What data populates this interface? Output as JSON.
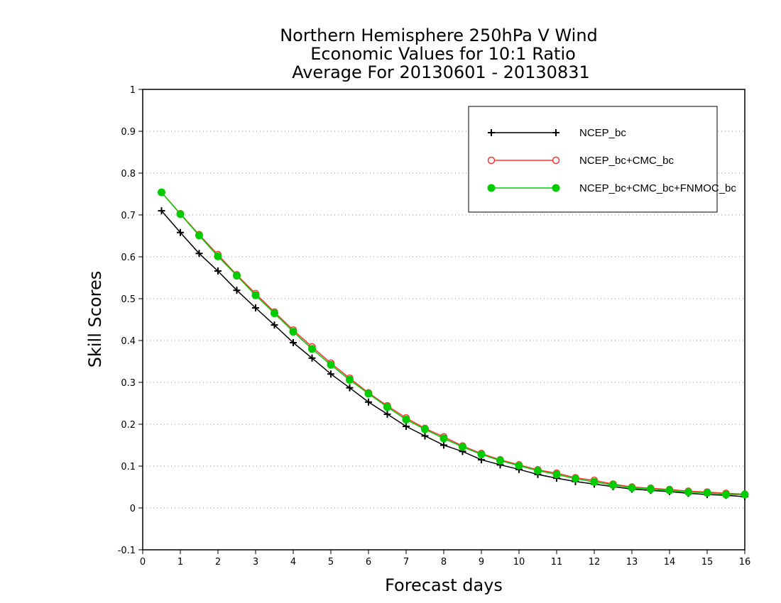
{
  "chart_data": {
    "type": "line",
    "title": [
      "Northern Hemisphere 250hPa V Wind",
      "Economic Values for 10:1 Ratio",
      "Average For 20130601 - 20130831"
    ],
    "xlabel": "Forecast days",
    "ylabel": "Skill Scores",
    "xlim": [
      0,
      16
    ],
    "ylim": [
      -0.1,
      1
    ],
    "x_ticks": [
      "0",
      "1",
      "2",
      "3",
      "4",
      "5",
      "6",
      "7",
      "8",
      "9",
      "10",
      "11",
      "12",
      "13",
      "14",
      "15",
      "16"
    ],
    "y_ticks": [
      "-0.1",
      "0",
      "0.1",
      "0.2",
      "0.3",
      "0.4",
      "0.5",
      "0.6",
      "0.7",
      "0.8",
      "0.9",
      "1"
    ],
    "grid": "horizontal dotted",
    "legend_position": "top-right",
    "x": [
      0.5,
      1,
      1.5,
      2,
      2.5,
      3,
      3.5,
      4,
      4.5,
      5,
      5.5,
      6,
      6.5,
      7,
      7.5,
      8,
      8.5,
      9,
      9.5,
      10,
      10.5,
      11,
      11.5,
      12,
      12.5,
      13,
      13.5,
      14,
      14.5,
      15,
      15.5,
      16
    ],
    "series": [
      {
        "name": "NCEP_bc",
        "color": "#000000",
        "marker": "plus",
        "values": [
          0.71,
          0.658,
          0.608,
          0.566,
          0.52,
          0.478,
          0.437,
          0.395,
          0.358,
          0.32,
          0.287,
          0.253,
          0.224,
          0.195,
          0.172,
          0.15,
          0.135,
          0.115,
          0.103,
          0.092,
          0.08,
          0.071,
          0.063,
          0.057,
          0.051,
          0.045,
          0.042,
          0.039,
          0.035,
          0.032,
          0.03,
          0.027
        ]
      },
      {
        "name": "NCEP_bc+CMC_bc",
        "color": "#ff3333",
        "marker": "open-circle",
        "values": [
          0.754,
          0.703,
          0.653,
          0.605,
          0.557,
          0.512,
          0.468,
          0.425,
          0.385,
          0.346,
          0.31,
          0.275,
          0.244,
          0.215,
          0.19,
          0.17,
          0.148,
          0.13,
          0.115,
          0.103,
          0.091,
          0.083,
          0.072,
          0.066,
          0.057,
          0.05,
          0.047,
          0.044,
          0.04,
          0.038,
          0.035,
          0.033
        ]
      },
      {
        "name": "NCEP_bc+CMC_bc+FNMOC_bc",
        "color": "#00cc00",
        "marker": "filled-circle",
        "values": [
          0.754,
          0.702,
          0.651,
          0.601,
          0.555,
          0.508,
          0.465,
          0.421,
          0.38,
          0.342,
          0.306,
          0.273,
          0.241,
          0.211,
          0.188,
          0.166,
          0.146,
          0.128,
          0.113,
          0.101,
          0.089,
          0.08,
          0.07,
          0.062,
          0.055,
          0.048,
          0.045,
          0.042,
          0.038,
          0.036,
          0.032,
          0.032
        ]
      }
    ]
  }
}
